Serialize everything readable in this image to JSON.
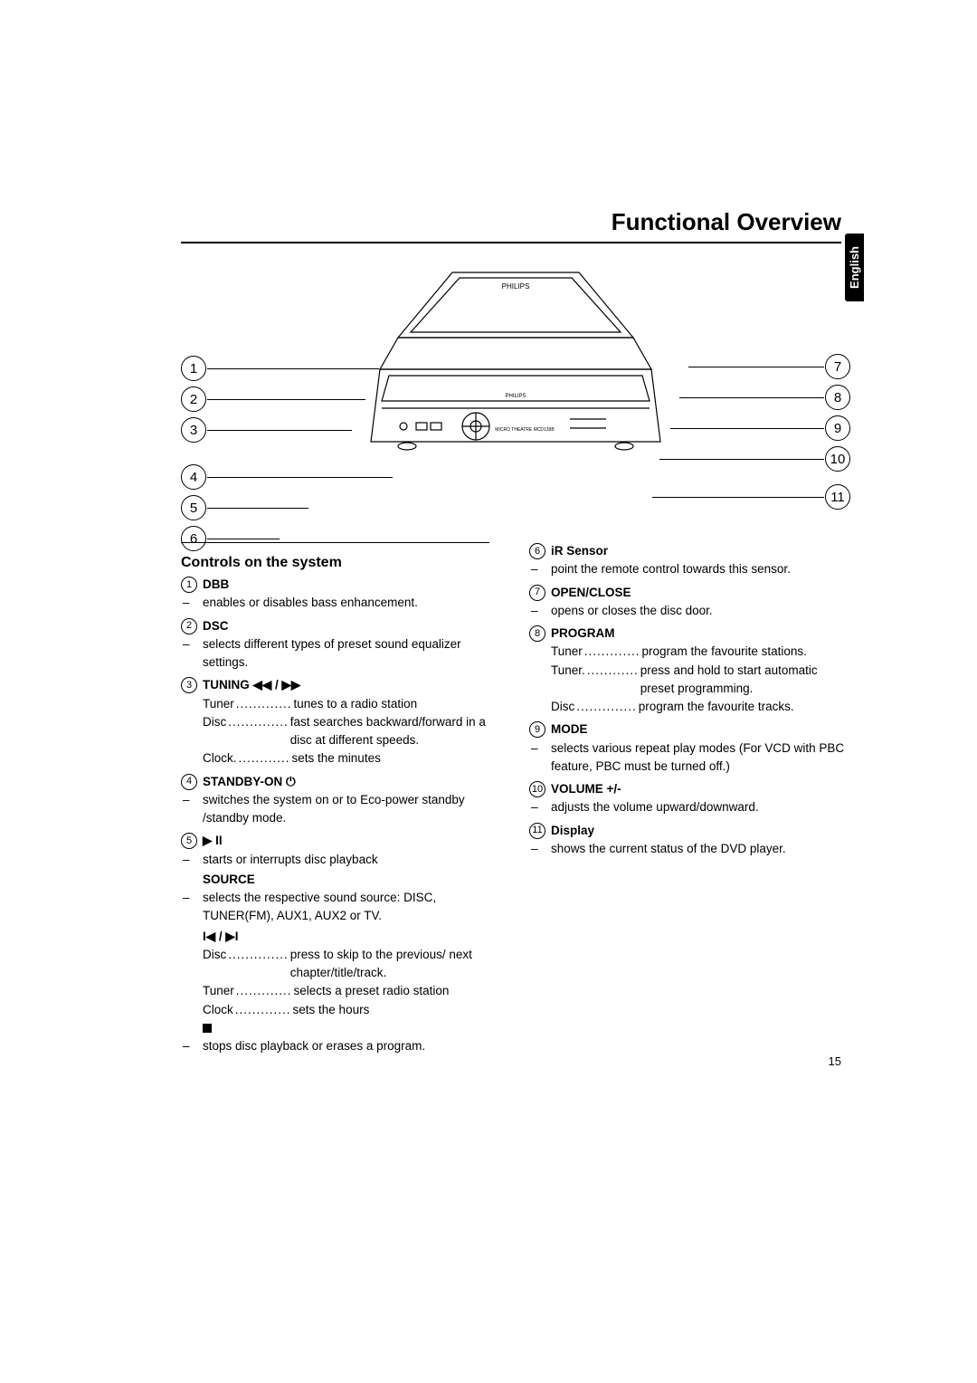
{
  "page_title": "Functional Overview",
  "language_tab": "English",
  "page_number": "15",
  "section_heading": "Controls on the system",
  "diagram": {
    "left_callouts": [
      "1",
      "2",
      "3",
      "4",
      "5",
      "6"
    ],
    "right_callouts": [
      "7",
      "8",
      "9",
      "10",
      "11"
    ],
    "brand_top": "PHILIPS",
    "brand_mid": "PHILIPS",
    "label_small": "MICRO THEATRE MCD139B"
  },
  "left_column": [
    {
      "num": "1",
      "title": "DBB",
      "lines": [
        {
          "type": "desc",
          "text": "enables or disables bass enhancement."
        }
      ]
    },
    {
      "num": "2",
      "title": "DSC",
      "lines": [
        {
          "type": "desc",
          "text": "selects different types of preset sound equalizer settings."
        }
      ]
    },
    {
      "num": "3",
      "title": "TUNING ◀◀ / ▶▶",
      "lines": [
        {
          "type": "kv",
          "key": "Tuner",
          "val": "tunes to a radio station"
        },
        {
          "type": "kv",
          "key": "Disc",
          "val": "fast searches backward/forward in a disc at different speeds."
        },
        {
          "type": "kv",
          "key": "Clock.",
          "val": "sets the minutes"
        }
      ]
    },
    {
      "num": "4",
      "title": "STANDBY-ON ⏻",
      "lines": [
        {
          "type": "desc",
          "text": "switches the system on or to Eco-power standby /standby mode."
        }
      ]
    },
    {
      "num": "5",
      "title": "▶ II",
      "lines": [
        {
          "type": "desc",
          "text": " starts or interrupts disc playback"
        },
        {
          "type": "subhead",
          "text": "SOURCE"
        },
        {
          "type": "desc",
          "text": "selects the respective sound source: DISC, TUNER(FM), AUX1, AUX2 or TV."
        },
        {
          "type": "glyphline",
          "text": "I◀ / ▶I"
        },
        {
          "type": "kv",
          "key": "Disc",
          "val": "press to skip to the previous/ next chapter/title/track."
        },
        {
          "type": "kv",
          "key": "Tuner",
          "val": "selects a preset radio station"
        },
        {
          "type": "kv",
          "key": "Clock",
          "val": "sets the hours"
        },
        {
          "type": "glyphstop"
        },
        {
          "type": "desc",
          "text": "stops disc playback or erases a program."
        }
      ]
    }
  ],
  "right_column": [
    {
      "num": "6",
      "title": "iR Sensor",
      "lines": [
        {
          "type": "desc",
          "text": "point the remote control towards this sensor."
        }
      ]
    },
    {
      "num": "7",
      "title": "OPEN/CLOSE",
      "lines": [
        {
          "type": "desc",
          "text": "opens or closes the disc door."
        }
      ]
    },
    {
      "num": "8",
      "title": "PROGRAM",
      "lines": [
        {
          "type": "kv",
          "key": "Tuner",
          "val": "program the favourite stations."
        },
        {
          "type": "kv",
          "key": "Tuner.",
          "val": "press and hold to start automatic preset programming."
        },
        {
          "type": "kv",
          "key": "Disc",
          "val": "program the favourite tracks."
        }
      ]
    },
    {
      "num": "9",
      "title": "MODE",
      "lines": [
        {
          "type": "desc",
          "text": "selects various repeat play modes (For VCD with PBC feature, PBC must be turned off.)"
        }
      ]
    },
    {
      "num": "10",
      "title": "VOLUME +/-",
      "lines": [
        {
          "type": "desc",
          "text": "adjusts the volume upward/downward."
        }
      ]
    },
    {
      "num": "11",
      "title": "Display",
      "lines": [
        {
          "type": "desc",
          "text": "shows the current status of the DVD player."
        }
      ]
    }
  ]
}
